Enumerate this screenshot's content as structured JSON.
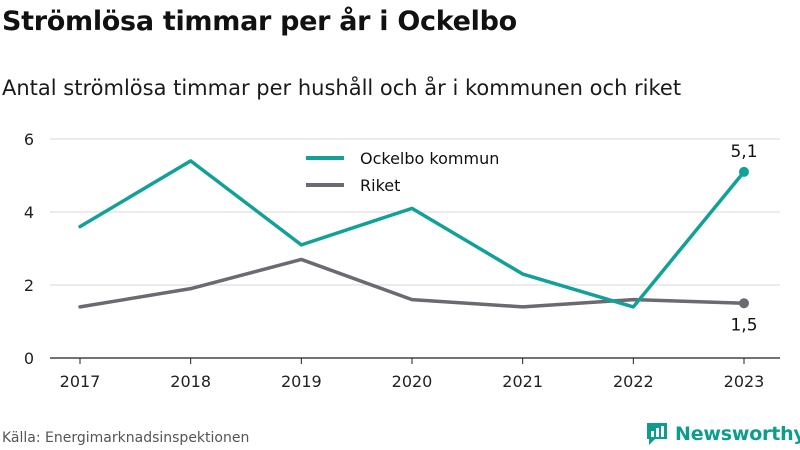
{
  "header": {
    "title": "Strömlösa timmar per år i Ockelbo",
    "subtitle": "Antal strömlösa timmar per hushåll och år i kommunen och riket"
  },
  "footer": {
    "source": "Källa: Energimarknadsinspektionen",
    "brand": "Newsworthy"
  },
  "colors": {
    "ockelbo": "#12a198",
    "riket": "#6b6a70",
    "grid": "#d9d9d9",
    "brand": "#0e9c8e"
  },
  "chart_data": {
    "type": "line",
    "title": "Strömlösa timmar per år i Ockelbo",
    "subtitle": "Antal strömlösa timmar per hushåll och år i kommunen och riket",
    "categories": [
      "2017",
      "2018",
      "2019",
      "2020",
      "2021",
      "2022",
      "2023"
    ],
    "series": [
      {
        "name": "Ockelbo kommun",
        "color": "#12a198",
        "values": [
          3.6,
          5.4,
          3.1,
          4.1,
          2.3,
          1.4,
          5.1
        ],
        "end_label": "5,1"
      },
      {
        "name": "Riket",
        "color": "#6b6a70",
        "values": [
          1.4,
          1.9,
          2.7,
          1.6,
          1.4,
          1.6,
          1.5
        ],
        "end_label": "1,5"
      }
    ],
    "ylim": [
      0,
      6
    ],
    "yticks": [
      0,
      2,
      4,
      6
    ],
    "grid": true,
    "legend_position": "top-center"
  }
}
